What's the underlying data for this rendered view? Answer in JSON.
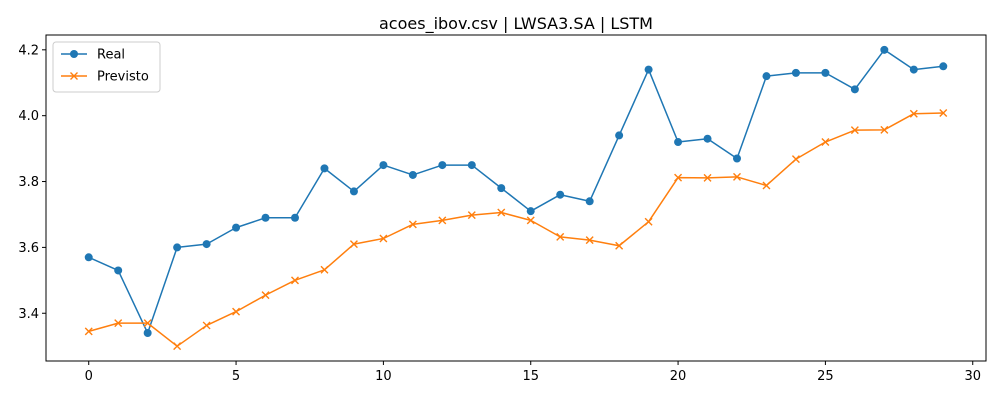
{
  "chart_data": {
    "type": "line",
    "title": "acoes_ibov.csv | LWSA3.SA | LSTM",
    "xlabel": "",
    "ylabel": "",
    "xlim": [
      -1.45,
      30.45
    ],
    "ylim": [
      3.255,
      4.245
    ],
    "x_ticks": [
      0,
      5,
      10,
      15,
      20,
      25,
      30
    ],
    "x_tick_labels": [
      "0",
      "5",
      "10",
      "15",
      "20",
      "25",
      "30"
    ],
    "y_ticks": [
      3.4,
      3.6,
      3.8,
      4.0,
      4.2
    ],
    "y_tick_labels": [
      "3.4",
      "3.6",
      "3.8",
      "4.0",
      "4.2"
    ],
    "grid": false,
    "legend_position": "upper-left",
    "x": [
      0,
      1,
      2,
      3,
      4,
      5,
      6,
      7,
      8,
      9,
      10,
      11,
      12,
      13,
      14,
      15,
      16,
      17,
      18,
      19,
      20,
      21,
      22,
      23,
      24,
      25,
      26,
      27,
      28,
      29
    ],
    "series": [
      {
        "name": "Real",
        "color": "#1f77b4",
        "marker": "circle",
        "values": [
          3.57,
          3.53,
          3.34,
          3.6,
          3.61,
          3.66,
          3.69,
          3.69,
          3.84,
          3.77,
          3.85,
          3.82,
          3.85,
          3.85,
          3.78,
          3.71,
          3.76,
          3.74,
          3.94,
          4.14,
          3.92,
          3.93,
          3.87,
          4.12,
          4.13,
          4.13,
          4.08,
          4.2,
          4.14,
          4.15
        ]
      },
      {
        "name": "Previsto",
        "color": "#ff7f0e",
        "marker": "x",
        "values": [
          3.345,
          3.37,
          3.37,
          3.3,
          3.363,
          3.405,
          3.455,
          3.5,
          3.532,
          3.61,
          3.627,
          3.67,
          3.682,
          3.698,
          3.706,
          3.682,
          3.632,
          3.622,
          3.605,
          3.678,
          3.812,
          3.811,
          3.814,
          3.788,
          3.868,
          3.92,
          3.956,
          3.957,
          4.006,
          4.008
        ]
      }
    ]
  }
}
